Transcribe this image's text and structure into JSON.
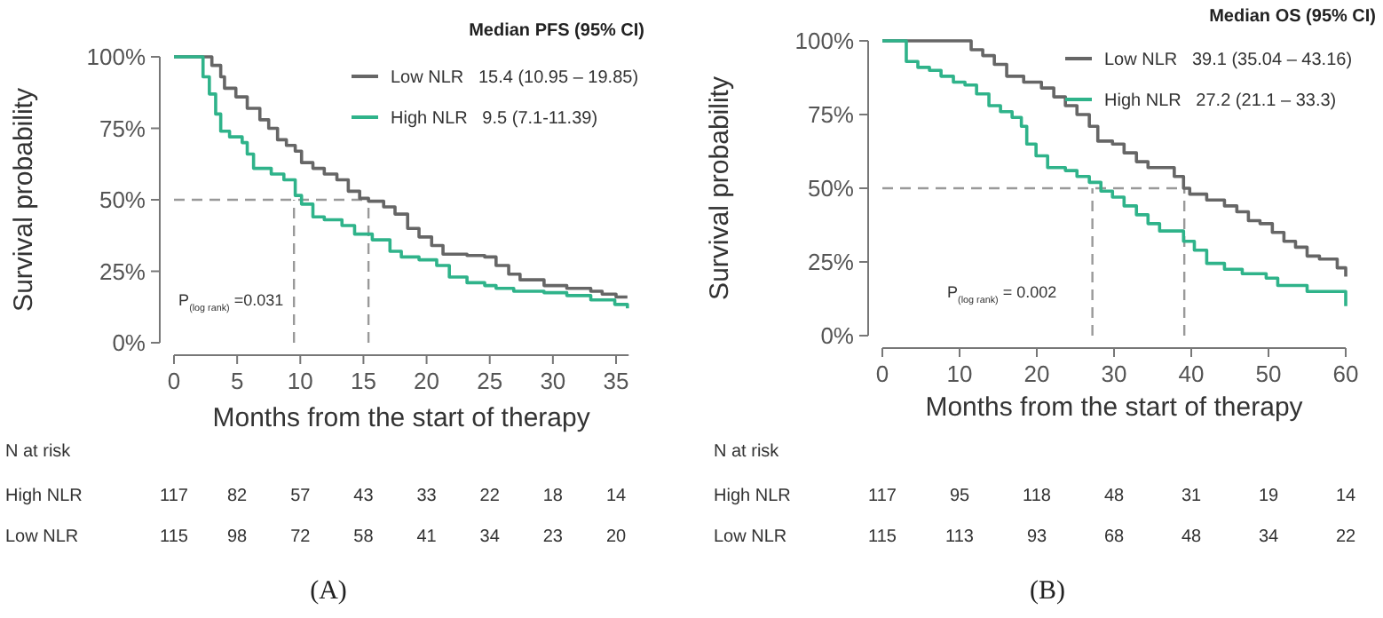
{
  "chart_data": [
    {
      "type": "step",
      "xlabel": "Months from the start of therapy",
      "ylabel": "Survival probability",
      "legend_title": "Median PFS (95% CI)",
      "legend": "top right",
      "xlim": [
        0,
        36
      ],
      "xticks": [
        0,
        5,
        10,
        15,
        20,
        25,
        30,
        35
      ],
      "ylim": [
        0,
        100
      ],
      "yticks": [
        {
          "value": 0,
          "label": "0%"
        },
        {
          "value": 25,
          "label": "25%"
        },
        {
          "value": 50,
          "label": "50%"
        },
        {
          "value": 75,
          "label": "75%"
        },
        {
          "value": 100,
          "label": "100%"
        }
      ],
      "series": [
        {
          "name": "Low NLR   15.4 (10.95 – 19.85)",
          "color": "#666666",
          "x": [
            0,
            2.3,
            3.0,
            3.7,
            4.0,
            4.9,
            5.8,
            6.8,
            7.5,
            8.2,
            8.9,
            9.6,
            10.1,
            11.0,
            11.9,
            12.9,
            13.8,
            14.7,
            15.4,
            16.6,
            17.5,
            18.5,
            19.4,
            20.4,
            21.3,
            23.2,
            24.6,
            25.5,
            26.5,
            27.4,
            29.3,
            31.1,
            33.0,
            33.9,
            35.0,
            35.9
          ],
          "values": [
            100,
            100,
            97,
            93,
            89,
            86,
            82,
            78,
            75,
            71,
            69,
            67,
            63,
            61,
            59,
            57,
            53,
            50.5,
            49.5,
            47.5,
            45,
            40,
            37,
            34,
            31,
            30.5,
            30,
            27,
            24,
            22,
            20,
            19,
            18,
            17,
            16,
            16
          ]
        },
        {
          "name": "High NLR   9.5 (7.1-11.39)",
          "color": "#2fb38a",
          "x": [
            0,
            1.9,
            2.3,
            2.8,
            3.3,
            3.7,
            4.4,
            5.4,
            5.8,
            6.3,
            7.7,
            8.7,
            9.6,
            10.1,
            11.0,
            11.9,
            13.3,
            14.3,
            15.7,
            17.1,
            18.0,
            19.4,
            20.8,
            21.8,
            23.2,
            24.6,
            25.5,
            26.9,
            29.3,
            31.1,
            33.0,
            34.9,
            35.9
          ],
          "values": [
            100,
            100,
            93,
            87,
            80,
            74,
            72,
            70,
            66,
            61,
            59,
            57,
            51.5,
            48.5,
            44,
            43,
            41,
            38,
            36,
            32,
            30,
            29,
            27,
            23,
            21,
            20,
            19,
            18,
            17.5,
            16.5,
            15,
            13.4,
            12
          ]
        }
      ],
      "ref_lines": [
        {
          "axis": "y",
          "value": 50,
          "color": "#999999",
          "line_style": "dashed"
        },
        {
          "axis": "x",
          "value": 9.5,
          "color": "#999999",
          "line_style": "dashed"
        },
        {
          "axis": "x",
          "value": 15.4,
          "color": "#999999",
          "line_style": "dashed"
        }
      ],
      "annotations": [
        "P$_{(log rank)}$ =0.031",
        "(A)",
        "N at risk",
        "High NLR",
        "117",
        "82",
        "57",
        "43",
        "33",
        "22",
        "18",
        "14",
        "Low NLR",
        "115",
        "98",
        "72",
        "58",
        "41",
        "34",
        "23",
        "20"
      ]
    },
    {
      "type": "step",
      "xlabel": "Months from the start of therapy",
      "ylabel": "Survival probability",
      "legend_title": "Median OS (95% CI)",
      "legend": "top right",
      "xlim": [
        0,
        60
      ],
      "xticks": [
        0,
        10,
        20,
        30,
        40,
        50,
        60
      ],
      "ylim": [
        0,
        100
      ],
      "yticks": [
        {
          "value": 0,
          "label": "0%"
        },
        {
          "value": 25,
          "label": "25%"
        },
        {
          "value": 50,
          "label": "50%"
        },
        {
          "value": 75,
          "label": "75%"
        },
        {
          "value": 100,
          "label": "100%"
        }
      ],
      "series": [
        {
          "name": "Low NLR   39.1 (35.04 – 43.16)",
          "color": "#666666",
          "x": [
            0,
            9.9,
            11.5,
            13.0,
            14.5,
            16.1,
            18.3,
            20.6,
            22.2,
            23.7,
            25.2,
            26.8,
            27.9,
            29.8,
            31.3,
            32.9,
            34.4,
            37.8,
            39.0,
            39.8,
            42.0,
            44.3,
            45.9,
            47.4,
            48.9,
            50.5,
            52.0,
            53.5,
            55.0,
            56.6,
            58.9,
            60.0
          ],
          "values": [
            100,
            100,
            97,
            95,
            92,
            88,
            86,
            84,
            81,
            78,
            75,
            71,
            66,
            65,
            62,
            59,
            57,
            54,
            50,
            48,
            46,
            44,
            42,
            39,
            38,
            35,
            32,
            30,
            27,
            26,
            23,
            20
          ]
        },
        {
          "name": "High NLR   27.2 (21.1 – 33.3)",
          "color": "#2fb38a",
          "x": [
            0,
            2.3,
            3.1,
            4.6,
            6.1,
            7.6,
            9.2,
            10.7,
            12.2,
            13.8,
            15.3,
            16.8,
            18.0,
            18.7,
            19.9,
            21.4,
            23.7,
            25.2,
            26.8,
            28.3,
            29.8,
            31.3,
            32.9,
            34.4,
            35.9,
            39.0,
            40.4,
            42.0,
            44.3,
            46.6,
            49.7,
            51.2,
            55.0,
            60.0
          ],
          "values": [
            100,
            100,
            93,
            91,
            90,
            88,
            86,
            85,
            82,
            78,
            76,
            74,
            71,
            65,
            61,
            57,
            56,
            54,
            52,
            49,
            47,
            44,
            41,
            38,
            35.5,
            32,
            29,
            24.5,
            22.5,
            21,
            19.5,
            17,
            15,
            10
          ]
        }
      ],
      "ref_lines": [
        {
          "axis": "y",
          "value": 50,
          "color": "#999999",
          "line_style": "dashed"
        },
        {
          "axis": "x",
          "value": 27.2,
          "color": "#999999",
          "line_style": "dashed"
        },
        {
          "axis": "x",
          "value": 39.1,
          "color": "#999999",
          "line_style": "dashed"
        }
      ],
      "annotations": [
        "P$_{(log rank)}$ = 0.002",
        "(B)",
        "N at risk",
        "High NLR",
        "117",
        "95",
        "118",
        "48",
        "31",
        "19",
        "14",
        "Low NLR",
        "115",
        "113",
        "93",
        "68",
        "48",
        "34",
        "22"
      ]
    }
  ]
}
